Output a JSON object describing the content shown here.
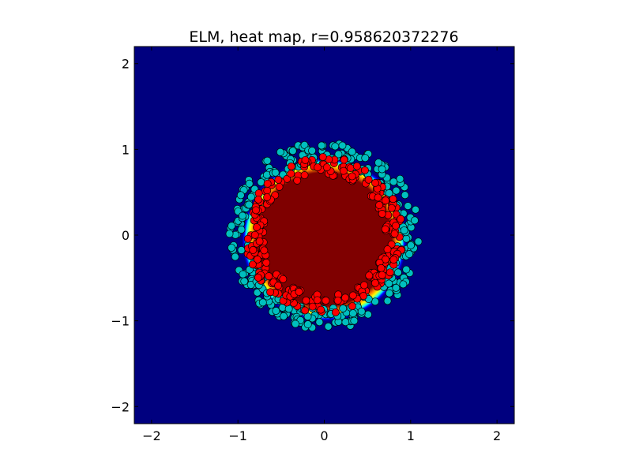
{
  "chart_data": {
    "type": "heatmap",
    "title": "ELM, heat map, r=0.958620372276",
    "xlabel": "",
    "ylabel": "",
    "xlim": [
      -2.2,
      2.2
    ],
    "ylim": [
      -2.2,
      2.2
    ],
    "xticks": [
      -2,
      -1,
      0,
      1,
      2
    ],
    "yticks": [
      -2,
      -1,
      0,
      1,
      2
    ],
    "xtick_labels": [
      "−2",
      "−1",
      "0",
      "1",
      "2"
    ],
    "ytick_labels": [
      "−2",
      "−1",
      "0",
      "1",
      "2"
    ],
    "grid": false,
    "heatmap": {
      "background_color": "#00007f",
      "inner_color": "#7f0000",
      "center": [
        0.0,
        -0.05
      ],
      "boundary_radius": 0.85,
      "transition_colors": [
        "#00007f",
        "#0000ff",
        "#00ffff",
        "#ffff00",
        "#ff7f00",
        "#7f0000"
      ]
    },
    "scatter_series": [
      {
        "color": "#00bfbf",
        "edge_color": "#000000",
        "radius_range": [
          0.85,
          1.1
        ],
        "count": 320
      },
      {
        "color": "#ff0000",
        "edge_color": "#000000",
        "radius_range": [
          0.7,
          0.92
        ],
        "count": 280
      }
    ]
  }
}
